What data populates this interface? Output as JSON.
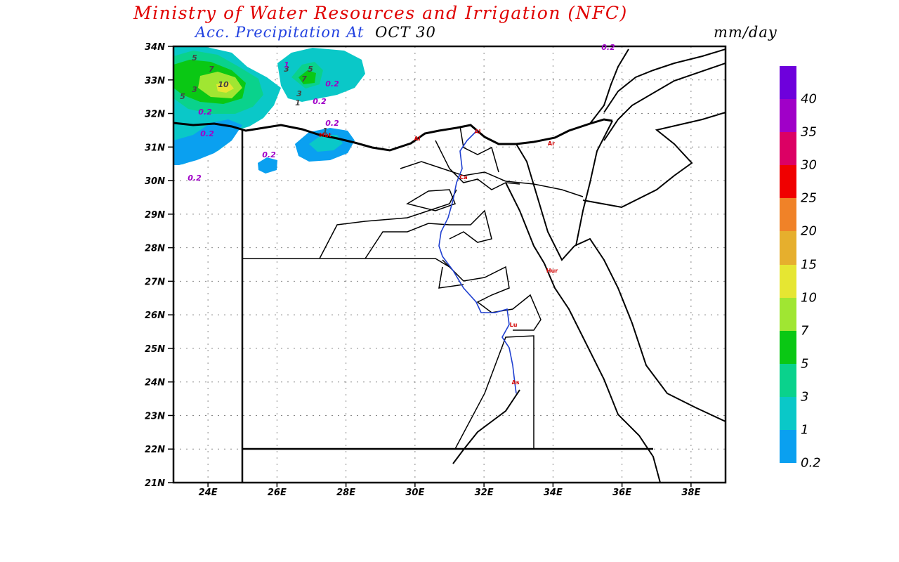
{
  "header": {
    "title": "Ministry of Water Resources and Irrigation (NFC)",
    "subtitle_label": "Acc. Precipitation  At",
    "subtitle_date": "OCT 30",
    "units": "mm/day"
  },
  "colors": {
    "title": "#e00000",
    "subtitle": "#2040e0",
    "river": "#2040d0"
  },
  "axes": {
    "lat_labels": [
      "21N",
      "22N",
      "23N",
      "24N",
      "25N",
      "26N",
      "27N",
      "28N",
      "29N",
      "30N",
      "31N",
      "32N",
      "33N",
      "34N"
    ],
    "lon_labels": [
      "24E",
      "26E",
      "28E",
      "30E",
      "32E",
      "34E",
      "36E",
      "38E"
    ],
    "lat_range": [
      21,
      34
    ],
    "lon_range": [
      23,
      39
    ],
    "grid": "dotted"
  },
  "colorbar": {
    "labels": [
      "0.2",
      "1",
      "3",
      "5",
      "7",
      "10",
      "15",
      "20",
      "25",
      "30",
      "35",
      "40"
    ],
    "colors": [
      "#0aa0f0",
      "#0ac8c8",
      "#0ad28c",
      "#0ac814",
      "#a0e632",
      "#e6e632",
      "#e6af2d",
      "#f08228",
      "#f00000",
      "#dc0064",
      "#a000c8",
      "#6e00dc"
    ]
  },
  "contour_labels": [
    "5",
    "7",
    "10",
    "3",
    "5",
    "0.2",
    "0.2",
    "3",
    "1",
    "5",
    "7",
    "3",
    "1",
    "0.2",
    "0.2",
    "0.2",
    "1",
    "0.2",
    "0.2",
    "0.2"
  ],
  "cities": [
    "Mat",
    "Al",
    "Al",
    "Ar",
    "Ca",
    "Hur",
    "Lu",
    "As"
  ]
}
